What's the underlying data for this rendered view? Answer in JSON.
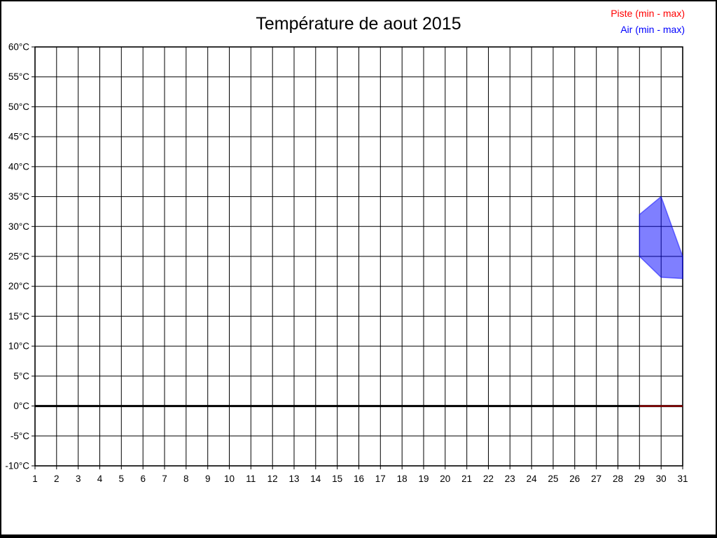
{
  "frame": {
    "background": "#ffffff",
    "border_color": "#000000"
  },
  "header": {
    "title": "Température de aout 2015"
  },
  "legend": {
    "position": "top-right",
    "items": [
      {
        "label": "Piste (min - max)",
        "color": "#ff0000"
      },
      {
        "label": "Air (min - max)",
        "color": "#0000ff"
      }
    ]
  },
  "chart_data": {
    "type": "area",
    "title": "Température de aout 2015",
    "xlabel": "",
    "ylabel": "",
    "xlim": [
      1,
      31
    ],
    "ylim": [
      -10,
      60
    ],
    "grid": true,
    "grid_color": "#000000",
    "legend_position": "top-right",
    "xtick_values": [
      1,
      2,
      3,
      4,
      5,
      6,
      7,
      8,
      9,
      10,
      11,
      12,
      13,
      14,
      15,
      16,
      17,
      18,
      19,
      20,
      21,
      22,
      23,
      24,
      25,
      26,
      27,
      28,
      29,
      30,
      31
    ],
    "ytick_values": [
      60,
      55,
      50,
      45,
      40,
      35,
      30,
      25,
      20,
      15,
      10,
      5,
      0,
      -5,
      -10
    ],
    "ytick_labels": [
      "60°C",
      "55°C",
      "50°C",
      "45°C",
      "40°C",
      "35°C",
      "30°C",
      "25°C",
      "20°C",
      "15°C",
      "10°C",
      "5°C",
      "0°C",
      "-5°C",
      "-10°C"
    ],
    "zero_line": {
      "value": 0,
      "color": "#000000",
      "width": 3
    },
    "series": [
      {
        "name": "Piste (min - max)",
        "kind": "range",
        "legend_color": "#ff0000",
        "line_color": "#990000",
        "fill_color": "rgba(255,0,0,0.5)",
        "points": [
          {
            "day": 29,
            "min": 0,
            "max": 0
          },
          {
            "day": 30,
            "min": 0,
            "max": 0
          },
          {
            "day": 31,
            "min": 0,
            "max": 0
          }
        ]
      },
      {
        "name": "Air (min - max)",
        "kind": "range",
        "legend_color": "#0000ff",
        "line_color": "rgba(0,0,255,0.5)",
        "fill_color": "rgba(0,0,255,0.5)",
        "points": [
          {
            "day": 29,
            "min": 25,
            "max": 32
          },
          {
            "day": 30,
            "min": 21.5,
            "max": 35
          },
          {
            "day": 31,
            "min": 21.3,
            "max": 25
          }
        ]
      }
    ]
  }
}
